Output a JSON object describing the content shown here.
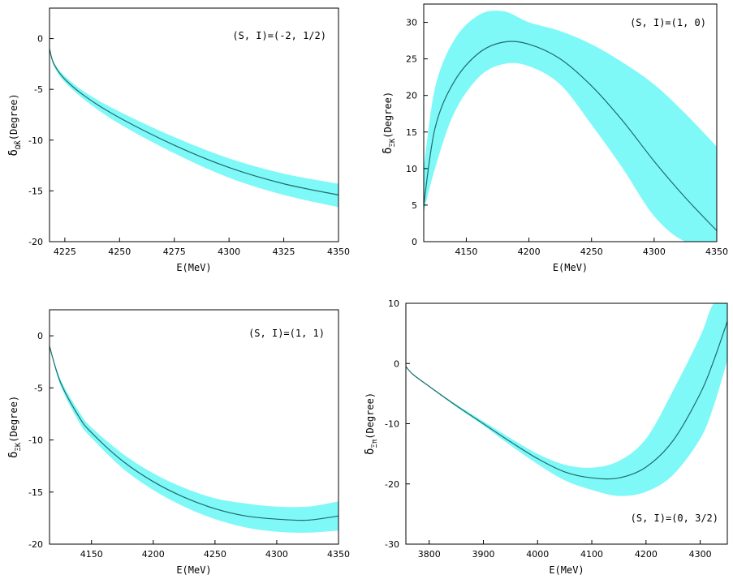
{
  "chart_data": [
    {
      "type": "area",
      "annotation": "(S, I)=(-2, 1/2)",
      "xlabel": "E(MeV)",
      "ylabel_main": "δ",
      "ylabel_sub": "ΩK̄",
      "ylabel_tail": "(Degree)",
      "xlim": [
        4218,
        4350
      ],
      "ylim": [
        -20,
        3
      ],
      "xticks": [
        4225,
        4250,
        4275,
        4300,
        4325,
        4350
      ],
      "yticks": [
        0,
        -5,
        -10,
        -15,
        -20
      ],
      "series": [
        {
          "x": [
            4218,
            4220,
            4225,
            4235,
            4250,
            4275,
            4300,
            4325,
            4350
          ],
          "center": [
            -1.0,
            -2.5,
            -4.0,
            -5.8,
            -7.8,
            -10.5,
            -12.7,
            -14.3,
            -15.4
          ],
          "upper": [
            -0.9,
            -2.3,
            -3.7,
            -5.4,
            -7.2,
            -9.7,
            -11.8,
            -13.3,
            -14.3
          ],
          "lower": [
            -1.1,
            -2.7,
            -4.3,
            -6.2,
            -8.4,
            -11.3,
            -13.7,
            -15.4,
            -16.6
          ]
        }
      ]
    },
    {
      "type": "area",
      "annotation": "(S, I)=(1, 0)",
      "xlabel": "E(MeV)",
      "ylabel_main": "δ",
      "ylabel_sub": "ΞK",
      "ylabel_tail": "(Degree)",
      "xlim": [
        4116,
        4350
      ],
      "ylim": [
        0,
        32.5
      ],
      "xticks": [
        4150,
        4200,
        4250,
        4300,
        4350
      ],
      "yticks": [
        0,
        5,
        10,
        15,
        20,
        25,
        30
      ],
      "series": [
        {
          "x": [
            4116,
            4125,
            4140,
            4160,
            4180,
            4200,
            4225,
            4250,
            4275,
            4300,
            4325,
            4350
          ],
          "center": [
            5.0,
            15.5,
            21.8,
            25.8,
            27.3,
            27.0,
            25.0,
            21.3,
            16.5,
            11.0,
            6.0,
            1.5
          ],
          "upper": [
            10.0,
            21.0,
            27.5,
            31.0,
            31.5,
            30.0,
            28.8,
            27.0,
            24.5,
            21.5,
            17.5,
            13.0
          ],
          "lower": [
            4.0,
            10.0,
            17.5,
            22.5,
            24.3,
            24.0,
            21.5,
            16.0,
            10.0,
            3.5,
            0.0,
            0.0
          ]
        }
      ]
    },
    {
      "type": "area",
      "annotation": "(S, I)=(1, 1)",
      "xlabel": "E(MeV)",
      "ylabel_main": "δ",
      "ylabel_sub": "ΞK",
      "ylabel_tail": "(Degree)",
      "xlim": [
        4116,
        4350
      ],
      "ylim": [
        -20,
        2.5
      ],
      "xticks": [
        4150,
        4200,
        4250,
        4300,
        4350
      ],
      "yticks": [
        0,
        -5,
        -10,
        -15,
        -20
      ],
      "series": [
        {
          "x": [
            4116,
            4125,
            4140,
            4150,
            4175,
            4200,
            4225,
            4250,
            4275,
            4300,
            4325,
            4350
          ],
          "center": [
            -1.0,
            -4.5,
            -7.8,
            -9.3,
            -12.0,
            -14.0,
            -15.5,
            -16.6,
            -17.3,
            -17.6,
            -17.7,
            -17.3
          ],
          "upper": [
            -0.9,
            -4.2,
            -7.3,
            -8.8,
            -11.3,
            -13.2,
            -14.6,
            -15.6,
            -16.1,
            -16.4,
            -16.4,
            -15.9
          ],
          "lower": [
            -1.1,
            -4.8,
            -8.3,
            -9.8,
            -12.7,
            -14.8,
            -16.4,
            -17.6,
            -18.4,
            -18.8,
            -18.9,
            -18.7
          ]
        }
      ]
    },
    {
      "type": "area",
      "annotation": "(S, I)=(0, 3/2)",
      "xlabel": "E(MeV)",
      "ylabel_main": "δ",
      "ylabel_sub": "Ξπ",
      "ylabel_tail": "(Degree)",
      "xlim": [
        3757,
        4350
      ],
      "ylim": [
        -30,
        10
      ],
      "xticks": [
        3800,
        3900,
        4000,
        4100,
        4200,
        4300
      ],
      "yticks": [
        10,
        0,
        -10,
        -20,
        -30
      ],
      "series": [
        {
          "x": [
            3757,
            3770,
            3800,
            3850,
            3900,
            3950,
            4000,
            4050,
            4100,
            4150,
            4200,
            4250,
            4300,
            4325,
            4350
          ],
          "center": [
            -0.5,
            -1.8,
            -3.8,
            -7.0,
            -10.0,
            -13.0,
            -15.8,
            -18.0,
            -19.0,
            -19.0,
            -17.2,
            -12.8,
            -5.0,
            0.5,
            7.0
          ],
          "upper": [
            -0.4,
            -1.7,
            -3.7,
            -6.8,
            -9.6,
            -12.4,
            -15.0,
            -16.8,
            -17.3,
            -16.2,
            -12.5,
            -4.5,
            4.5,
            10.0,
            10.0
          ],
          "lower": [
            -0.6,
            -1.9,
            -3.9,
            -7.2,
            -10.3,
            -13.6,
            -16.7,
            -19.4,
            -21.0,
            -22.0,
            -21.3,
            -18.5,
            -12.5,
            -7.0,
            0.5
          ]
        }
      ]
    }
  ]
}
